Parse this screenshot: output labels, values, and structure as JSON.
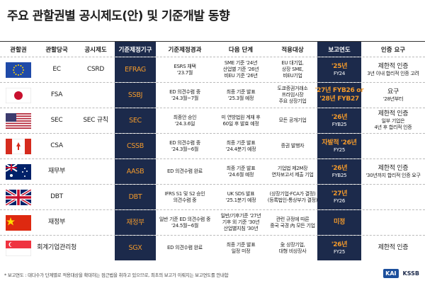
{
  "header": {
    "title": "주요 관할권별 공시제도(안) 및 기준개발 동향"
  },
  "table": {
    "columns": [
      "관할권",
      "관할당국",
      "공시제도",
      "기준제정기구",
      "기준제정경과",
      "다음 단계",
      "적용대상",
      "보고연도",
      "인증 요구"
    ],
    "rows": [
      {
        "authority": "EC",
        "system": "CSRD",
        "body": "EFRAG",
        "progress": [
          "ESRS 채택",
          "'23.7월"
        ],
        "next": [
          "SME 기준 '24년",
          "산업별 기준 '26년",
          "비EU 기준 '26년"
        ],
        "target": [
          "EU 대기업,",
          "상장 SME,",
          "비EU기업"
        ],
        "year": [
          "'25년",
          "FY24"
        ],
        "assurance": [
          "제한적 인증",
          "3년 이내 합리적 인증 고려"
        ]
      },
      {
        "authority": "FSA",
        "body": "SSBJ",
        "progress": [
          "ED 의견수렴 중",
          "'24.3월~7월"
        ],
        "next": [
          "최종 기준 발표",
          "'25.3월 예정"
        ],
        "target": [
          "도쿄증권거래소",
          "프라임시장",
          "주요 상장기업"
        ],
        "year": [
          "'27년 FYB26 or",
          "'28년 FYB27"
        ],
        "assurance": [
          "요구",
          "'28년부터"
        ]
      },
      {
        "authority": "SEC",
        "system": "SEC 규칙",
        "body": "SEC",
        "progress": [
          "최종안 승인",
          "'24.3.6일"
        ],
        "next": [
          "미 연방법원 계재 후",
          "60일 후 발효 예정"
        ],
        "target": [
          "모든 공개기업"
        ],
        "year": [
          "'26년",
          "FYB25"
        ],
        "assurance": [
          "제한적 인증",
          "일부 기업은",
          "4년 후 합리적 인증"
        ]
      },
      {
        "authority": "CSA",
        "body": "CSSB",
        "progress": [
          "ED 의견수렴 중",
          "'24.3월~6월"
        ],
        "next": [
          "최종 기준 발표",
          "'24.4분기 예정"
        ],
        "target": [
          "증권 발행자"
        ],
        "year": [
          "자발적 '26년",
          "FY25"
        ]
      },
      {
        "authority": "재무부",
        "body": "AASB",
        "progress": [
          "ED 의견수렴 완료"
        ],
        "next": [
          "최종 기준 발표",
          "'24.6월 예정"
        ],
        "target": [
          "기업법 제2M장",
          "연차보고서 제출 기업"
        ],
        "year": [
          "'26년",
          "FYB25"
        ],
        "assurance": [
          "제한적 인증",
          "'30년까지 합리적 인증 요구"
        ]
      },
      {
        "authority": "DBT",
        "body": "DBT",
        "progress": [
          "IFRS S1 및 S2 승인",
          "의견수렴 중"
        ],
        "next": [
          "UK SDS 발표",
          "'25.1분기 예정"
        ],
        "target": [
          "(상장기업-FCA가 결정)",
          "(등록법인-통상부가 결정)"
        ],
        "year": [
          "'27년",
          "FY26"
        ]
      },
      {
        "authority": "재정부",
        "body": "재정부",
        "progress": [
          "일반 기준 ED 의견수렴 중",
          "'24.5월~6월"
        ],
        "next": [
          "일반/기후기준 '27년",
          "기후 외 기준 '30년",
          "산업별지침 '30년"
        ],
        "target": [
          "관련 규정에 따른",
          "중국 국경 內 모든 기업"
        ],
        "year": [
          "미정"
        ]
      },
      {
        "authority": "회계기업관리청",
        "body": "SGX",
        "progress": [
          "ED 의견수렴 완료"
        ],
        "next": [
          "최종 기준 발표",
          "일정 미정"
        ],
        "target": [
          "全 상장기업,",
          "대형 비상장사"
        ],
        "year": [
          "'26년",
          "FY25"
        ],
        "assurance": [
          "제한적 인증"
        ]
      }
    ]
  },
  "footer": {
    "note": "* 보고연도 : 대다수가 단계별로 적용대상을 확대하는 점근법을 취하고 있으므로, 최초의 보고가 이뤄지는 보고연도를 안내함",
    "logos": [
      "KAI",
      "KSSB"
    ]
  }
}
